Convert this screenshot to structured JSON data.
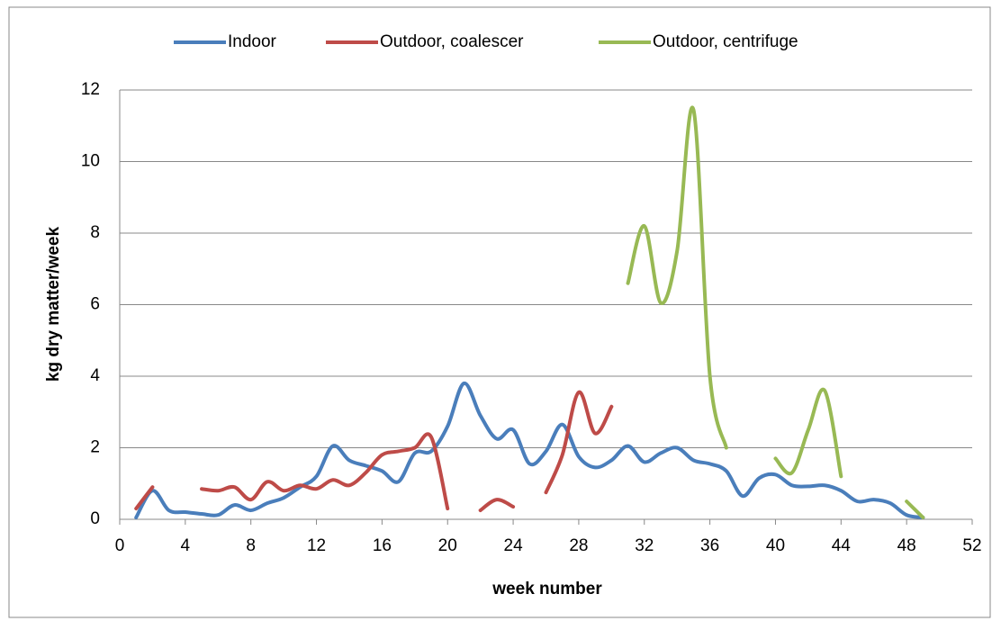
{
  "chart_data": {
    "type": "line",
    "x_label": "week number",
    "y_label": "kg dry matter/week",
    "x": [
      1,
      2,
      3,
      4,
      5,
      6,
      7,
      8,
      9,
      10,
      11,
      12,
      13,
      14,
      15,
      16,
      17,
      18,
      19,
      20,
      21,
      22,
      23,
      24,
      25,
      26,
      27,
      28,
      29,
      30,
      31,
      32,
      33,
      34,
      35,
      36,
      37,
      38,
      39,
      40,
      41,
      42,
      43,
      44,
      45,
      46,
      47,
      48,
      49
    ],
    "series": [
      {
        "name": "Indoor",
        "color": "#4a7ebb",
        "values": [
          0.05,
          0.8,
          0.25,
          0.2,
          0.15,
          0.12,
          0.4,
          0.25,
          0.45,
          0.6,
          0.9,
          1.2,
          2.05,
          1.65,
          1.5,
          1.35,
          1.05,
          1.85,
          1.9,
          2.6,
          3.8,
          2.9,
          2.25,
          2.5,
          1.55,
          1.9,
          2.65,
          1.75,
          1.45,
          1.65,
          2.05,
          1.6,
          1.85,
          2.0,
          1.65,
          1.55,
          1.35,
          0.65,
          1.15,
          1.25,
          0.95,
          0.92,
          0.95,
          0.8,
          0.5,
          0.55,
          0.45,
          0.12,
          0.05
        ]
      },
      {
        "name": "Outdoor, coalescer",
        "color": "#be4b48",
        "values": [
          0.3,
          0.9,
          null,
          null,
          0.85,
          0.8,
          0.9,
          0.55,
          1.05,
          0.8,
          0.95,
          0.85,
          1.1,
          0.95,
          1.3,
          1.8,
          1.9,
          2.0,
          2.3,
          0.3,
          null,
          0.25,
          0.55,
          0.35,
          null,
          0.75,
          1.8,
          3.55,
          2.4,
          3.15,
          null,
          null,
          null,
          null,
          null,
          null,
          null,
          null,
          null,
          null,
          null,
          null,
          null,
          null,
          null,
          null,
          null,
          null,
          null
        ]
      },
      {
        "name": "Outdoor, centrifuge",
        "color": "#98b954",
        "values": [
          null,
          null,
          null,
          null,
          null,
          null,
          null,
          null,
          null,
          null,
          null,
          null,
          null,
          null,
          null,
          null,
          null,
          null,
          null,
          null,
          null,
          null,
          null,
          null,
          null,
          null,
          null,
          null,
          null,
          null,
          6.6,
          8.2,
          6.05,
          7.5,
          11.45,
          4.0,
          2.0,
          null,
          null,
          1.7,
          1.3,
          2.5,
          3.6,
          1.2,
          null,
          null,
          null,
          0.5,
          0.05
        ]
      }
    ],
    "xlim": [
      0,
      52
    ],
    "xticks": [
      0,
      4,
      8,
      12,
      16,
      20,
      24,
      28,
      32,
      36,
      40,
      44,
      48,
      52
    ],
    "ylim": [
      0,
      12
    ],
    "yticks": [
      0,
      2,
      4,
      6,
      8,
      10,
      12
    ],
    "grid": true,
    "legend": "top"
  }
}
